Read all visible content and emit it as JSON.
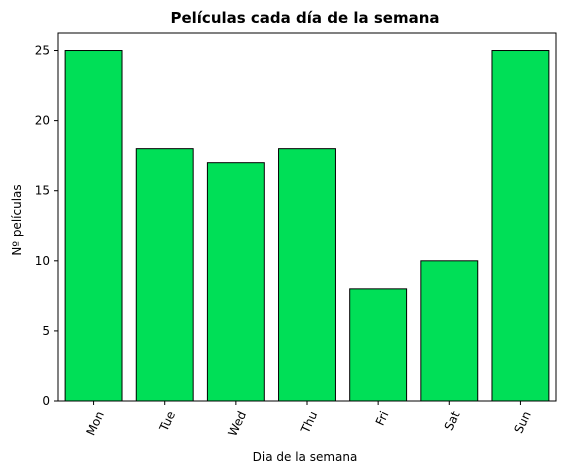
{
  "chart_data": {
    "type": "bar",
    "title": "Películas cada día de la semana",
    "xlabel": "Dia de la semana",
    "ylabel": "Nº películas",
    "categories": [
      "Mon",
      "Tue",
      "Wed",
      "Thu",
      "Fri",
      "Sat",
      "Sun"
    ],
    "values": [
      25,
      18,
      17,
      18,
      8,
      10,
      25
    ],
    "ylim": [
      0,
      26.25
    ],
    "yticks": [
      0,
      5,
      10,
      15,
      20,
      25
    ],
    "xtick_rotation": -65,
    "grid": false,
    "bar_color": "#00df57",
    "edge_color": "#000000"
  }
}
